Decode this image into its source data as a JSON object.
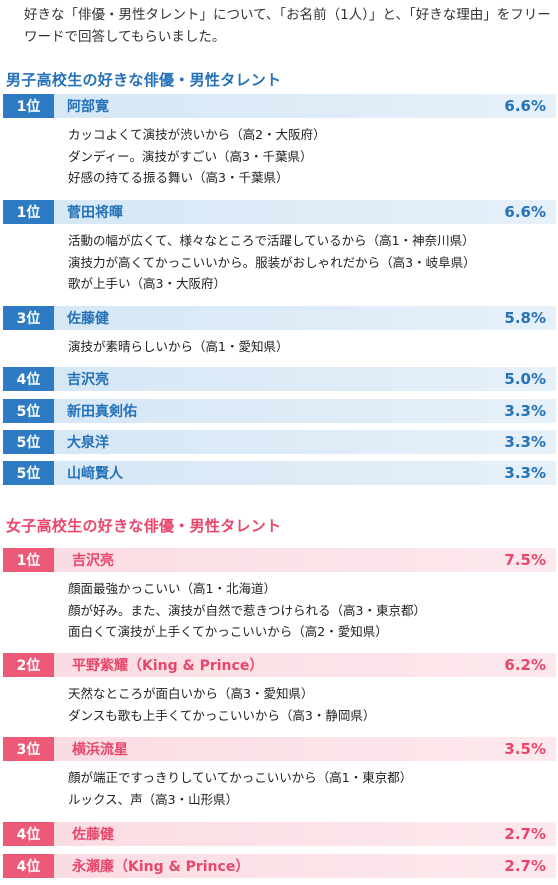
{
  "intro": "好きな「俳優・男性タレント」について、「お名前（1人）」と、「好きな理由」をフリーワードで回答してもらいました。",
  "boys": {
    "title": "男子高校生の好きな俳優・男性タレント",
    "items": [
      {
        "rank": "1位",
        "name": "阿部寛",
        "pct": "6.6%",
        "reasons": [
          "カッコよくて演技が渋いから（高2・大阪府）",
          "ダンディー。演技がすごい（高3・千葉県）",
          "好感の持てる振る舞い（高3・千葉県）"
        ]
      },
      {
        "rank": "1位",
        "name": "菅田将暉",
        "pct": "6.6%",
        "reasons": [
          "活動の幅が広くて、様々なところで活躍しているから（高1・神奈川県）",
          "演技力が高くてかっこいいから。服装がおしゃれだから（高3・岐阜県）",
          "歌が上手い（高3・大阪府）"
        ]
      },
      {
        "rank": "3位",
        "name": "佐藤健",
        "pct": "5.8%",
        "reasons": [
          "演技が素晴らしいから（高1・愛知県）"
        ]
      },
      {
        "rank": "4位",
        "name": "吉沢亮",
        "pct": "5.0%",
        "reasons": []
      },
      {
        "rank": "5位",
        "name": "新田真剣佑",
        "pct": "3.3%",
        "reasons": []
      },
      {
        "rank": "5位",
        "name": "大泉洋",
        "pct": "3.3%",
        "reasons": []
      },
      {
        "rank": "5位",
        "name": "山﨑賢人",
        "pct": "3.3%",
        "reasons": []
      }
    ]
  },
  "girls": {
    "title": "女子高校生の好きな俳優・男性タレント",
    "items": [
      {
        "rank": "1位",
        "name": "吉沢亮",
        "pct": "7.5%",
        "reasons": [
          "顔面最強かっこいい（高1・北海道）",
          "顔が好み。また、演技が自然で惹きつけられる（高3・東京都）",
          "面白くて演技が上手くてかっこいいから（高2・愛知県）"
        ]
      },
      {
        "rank": "2位",
        "name": "平野紫耀（King & Prince）",
        "pct": "6.2%",
        "reasons": [
          "天然なところが面白いから（高3・愛知県）",
          "ダンスも歌も上手くてかっこいいから（高3・静岡県）"
        ]
      },
      {
        "rank": "3位",
        "name": "横浜流星",
        "pct": "3.5%",
        "reasons": [
          "顔が端正ですっきりしていてかっこいいから（高1・東京都）",
          "ルックス、声（高3・山形県）"
        ]
      },
      {
        "rank": "4位",
        "name": "佐藤健",
        "pct": "2.7%",
        "reasons": []
      },
      {
        "rank": "4位",
        "name": "永瀬廉（King & Prince）",
        "pct": "2.7%",
        "reasons": []
      }
    ]
  }
}
